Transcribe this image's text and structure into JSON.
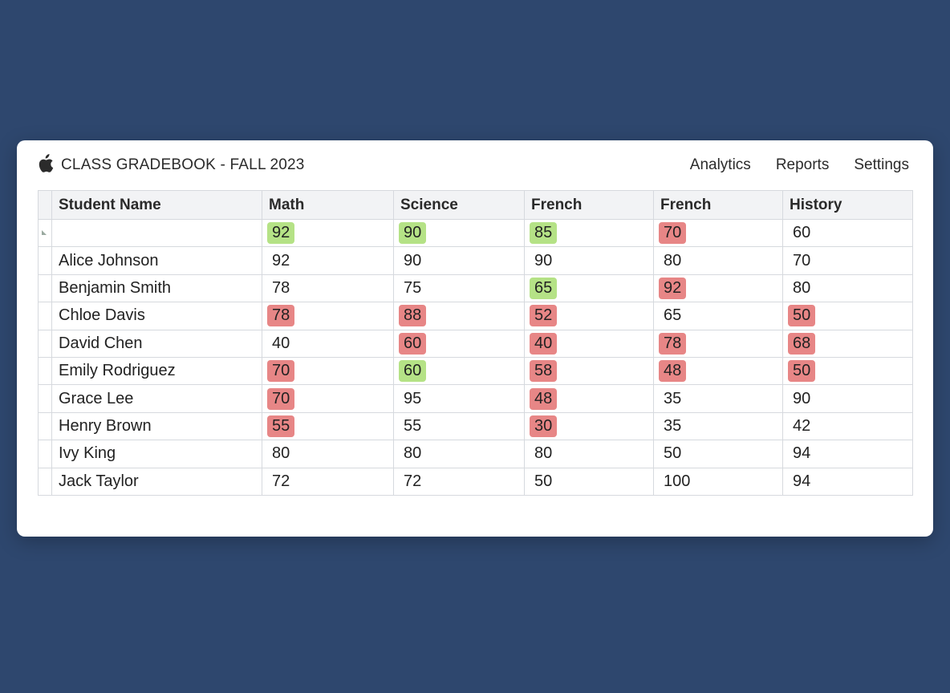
{
  "app": {
    "title": "CLASS GRADEBOOK - FALL 2023",
    "logo_icon": "apple-icon"
  },
  "nav": {
    "items": [
      "Analytics",
      "Reports",
      "Settings"
    ]
  },
  "colors": {
    "background": "#2e476e",
    "highlight_good": "#b5e286",
    "highlight_bad": "#e78686"
  },
  "table": {
    "columns": [
      "Student Name",
      "Math",
      "Science",
      "French",
      "French",
      "History"
    ],
    "rows": [
      {
        "name": "",
        "grades": [
          {
            "value": "92",
            "highlight": "green"
          },
          {
            "value": "90",
            "highlight": "green"
          },
          {
            "value": "85",
            "highlight": "green"
          },
          {
            "value": "70",
            "highlight": "red"
          },
          {
            "value": "60",
            "highlight": "none"
          }
        ]
      },
      {
        "name": "Alice Johnson",
        "grades": [
          {
            "value": "92",
            "highlight": "none"
          },
          {
            "value": "90",
            "highlight": "none"
          },
          {
            "value": "90",
            "highlight": "none"
          },
          {
            "value": "80",
            "highlight": "none"
          },
          {
            "value": "70",
            "highlight": "none"
          }
        ]
      },
      {
        "name": "Benjamin Smith",
        "grades": [
          {
            "value": "78",
            "highlight": "none"
          },
          {
            "value": "75",
            "highlight": "none"
          },
          {
            "value": "65",
            "highlight": "green"
          },
          {
            "value": "92",
            "highlight": "red"
          },
          {
            "value": "80",
            "highlight": "none"
          }
        ]
      },
      {
        "name": "Chloe Davis",
        "grades": [
          {
            "value": "78",
            "highlight": "red"
          },
          {
            "value": "88",
            "highlight": "red"
          },
          {
            "value": "52",
            "highlight": "red"
          },
          {
            "value": "65",
            "highlight": "none"
          },
          {
            "value": "50",
            "highlight": "red"
          }
        ]
      },
      {
        "name": "David Chen",
        "grades": [
          {
            "value": "40",
            "highlight": "none"
          },
          {
            "value": "60",
            "highlight": "red"
          },
          {
            "value": "40",
            "highlight": "red"
          },
          {
            "value": "78",
            "highlight": "red"
          },
          {
            "value": "68",
            "highlight": "red"
          }
        ]
      },
      {
        "name": "Emily Rodriguez",
        "grades": [
          {
            "value": "70",
            "highlight": "red"
          },
          {
            "value": "60",
            "highlight": "green"
          },
          {
            "value": "58",
            "highlight": "red"
          },
          {
            "value": "48",
            "highlight": "red"
          },
          {
            "value": "50",
            "highlight": "red"
          }
        ]
      },
      {
        "name": "Grace Lee",
        "grades": [
          {
            "value": "70",
            "highlight": "red"
          },
          {
            "value": "95",
            "highlight": "none"
          },
          {
            "value": "48",
            "highlight": "red"
          },
          {
            "value": "35",
            "highlight": "none"
          },
          {
            "value": "90",
            "highlight": "none"
          }
        ]
      },
      {
        "name": "Henry Brown",
        "grades": [
          {
            "value": "55",
            "highlight": "red"
          },
          {
            "value": "55",
            "highlight": "none"
          },
          {
            "value": "30",
            "highlight": "red"
          },
          {
            "value": "35",
            "highlight": "none"
          },
          {
            "value": "42",
            "highlight": "none"
          }
        ]
      },
      {
        "name": "Ivy King",
        "grades": [
          {
            "value": "80",
            "highlight": "none"
          },
          {
            "value": "80",
            "highlight": "none"
          },
          {
            "value": "80",
            "highlight": "none"
          },
          {
            "value": "50",
            "highlight": "none"
          },
          {
            "value": "94",
            "highlight": "none"
          }
        ]
      },
      {
        "name": "Jack Taylor",
        "grades": [
          {
            "value": "72",
            "highlight": "none"
          },
          {
            "value": "72",
            "highlight": "none"
          },
          {
            "value": "50",
            "highlight": "none"
          },
          {
            "value": "100",
            "highlight": "none"
          },
          {
            "value": "94",
            "highlight": "none"
          }
        ]
      }
    ]
  }
}
